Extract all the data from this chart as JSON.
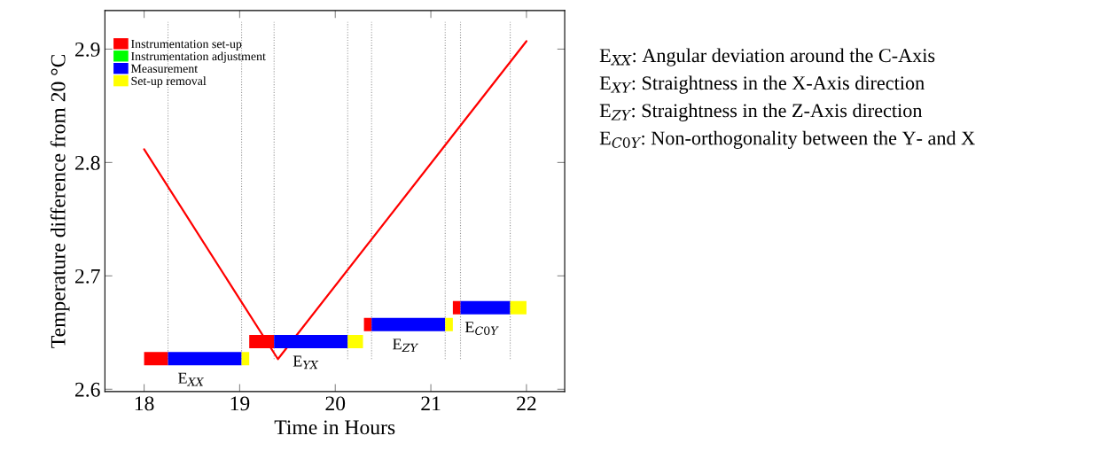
{
  "chart_data": {
    "type": "line",
    "xlabel": "Time in Hours",
    "ylabel": "Temperature difference from 20 °C",
    "xlim": [
      17.59,
      22.4
    ],
    "ylim": [
      2.598,
      2.934
    ],
    "xticks": [
      18,
      19,
      20,
      21,
      22
    ],
    "yticks": [
      2.6,
      2.7,
      2.8,
      2.9
    ],
    "marker": "none",
    "line_style": "solid",
    "legend": "top left",
    "series": [
      {
        "color": "#ff0000",
        "x": [
          18,
          19.4,
          22
        ],
        "values": [
          2.8117,
          2.6266,
          2.907
        ]
      },
      {
        "name": "Instrumentation set-up",
        "color": "#ff0000",
        "x": [
          18.0,
          18.25,
          null,
          19.1,
          19.36,
          null,
          20.3,
          20.38,
          null,
          21.23,
          21.31
        ],
        "values": [
          2.627,
          2.627,
          null,
          2.642,
          2.642,
          null,
          2.657,
          2.657,
          null,
          2.672,
          2.672
        ]
      },
      {
        "name": "Instrumentation adjustment",
        "color": "#00ff00",
        "x": [
          null
        ],
        "values": [
          null
        ]
      },
      {
        "name": "Measurement",
        "color": "#0000ff",
        "x": [
          18.25,
          19.02,
          null,
          19.36,
          20.13,
          null,
          20.38,
          21.15,
          null,
          21.31,
          21.83
        ],
        "values": [
          2.627,
          2.627,
          null,
          2.642,
          2.642,
          null,
          2.657,
          2.657,
          null,
          2.672,
          2.672
        ]
      },
      {
        "name": "Set-up removal",
        "color": "#ffff00",
        "x": [
          19.02,
          19.1,
          null,
          20.13,
          20.29,
          null,
          21.15,
          21.23,
          null,
          21.83,
          22.0
        ],
        "values": [
          2.627,
          2.627,
          null,
          2.642,
          2.642,
          null,
          2.657,
          2.657,
          null,
          2.672,
          2.672
        ]
      }
    ],
    "ref_lines": [
      {
        "axis": "x",
        "value": 18.25,
        "color": "#999999",
        "line_style": "dotted"
      },
      {
        "axis": "x",
        "value": 19.02,
        "color": "#999999",
        "line_style": "dotted"
      },
      {
        "axis": "x",
        "value": 19.36,
        "color": "#999999",
        "line_style": "dotted"
      },
      {
        "axis": "x",
        "value": 20.13,
        "color": "#999999",
        "line_style": "dotted"
      },
      {
        "axis": "x",
        "value": 20.38,
        "color": "#999999",
        "line_style": "dotted"
      },
      {
        "axis": "x",
        "value": 21.15,
        "color": "#999999",
        "line_style": "dotted"
      },
      {
        "axis": "x",
        "value": 21.31,
        "color": "#999999",
        "line_style": "dotted"
      },
      {
        "axis": "x",
        "value": 21.83,
        "color": "#999999",
        "line_style": "dotted"
      }
    ],
    "annotations": [
      {
        "text": "E$_{XX}$",
        "x": 18.49,
        "y": 2.627
      },
      {
        "text": "E$_{YX}$",
        "x": 19.69,
        "y": 2.642
      },
      {
        "text": "E$_{ZY}$",
        "x": 20.73,
        "y": 2.657
      },
      {
        "text": "E$_{C0Y}$",
        "x": 21.53,
        "y": 2.672
      },
      "E$_{XX}$: Angular deviation around the C-Axis",
      "E$_{XY}$: Straightness in the X-Axis direction",
      "E$_{ZY}$: Straightness in the Z-Axis direction",
      "E$_{C0Y}$: Non-orthogonality between the Y- and X"
    ]
  }
}
